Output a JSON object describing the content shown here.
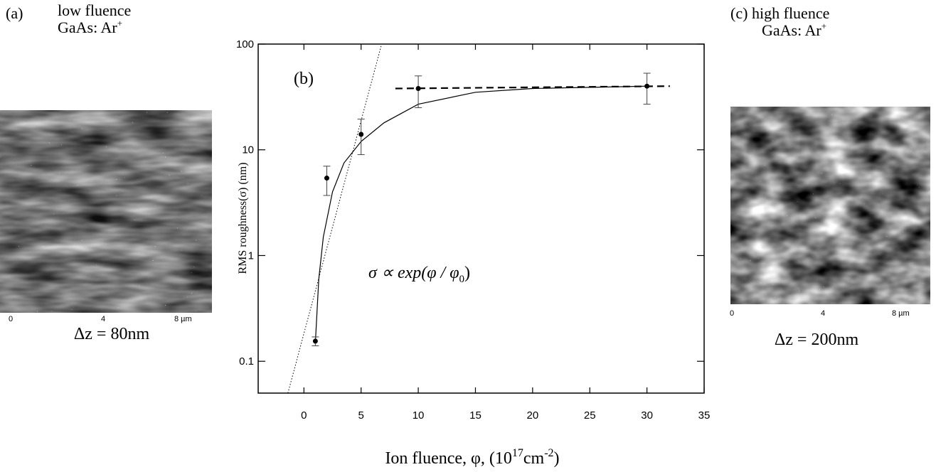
{
  "panels": {
    "a": {
      "tag": "(a)",
      "title": "low fluence",
      "material": "GaAs: Ar",
      "ion_charge": "+",
      "scale": [
        "0",
        "4",
        "8 µm"
      ],
      "dz": "Δz = 80nm"
    },
    "c": {
      "tag": "(c)",
      "title": "high fluence",
      "material": "GaAs: Ar",
      "ion_charge": "+",
      "scale": [
        "0",
        "4",
        "8 µm"
      ],
      "dz": "Δz = 200nm"
    }
  },
  "chart_data": {
    "type": "scatter",
    "panel_tag": "(b)",
    "y_label": "RMS roughness(σ) (nm)",
    "x_label": [
      "Ion fluence, φ, (10",
      "17",
      "cm",
      "-2",
      ")"
    ],
    "formula": [
      "σ ∝ exp(φ / φ",
      "0",
      ")"
    ],
    "x": [
      1,
      2,
      5,
      10,
      30
    ],
    "values": [
      0.155,
      5.4,
      14,
      38,
      40
    ],
    "lower": [
      0.14,
      3.7,
      9,
      25,
      27
    ],
    "upper": [
      0.17,
      7.0,
      19.5,
      50,
      53
    ],
    "color": "#000000",
    "xlim": [
      -4,
      35
    ],
    "xticks": [
      0,
      5,
      10,
      15,
      20,
      25,
      30,
      35
    ],
    "ylim": [
      0.05,
      100
    ],
    "yticks": [
      0.1,
      1,
      10,
      100
    ],
    "log_y": true,
    "curves": [
      {
        "style": "solid",
        "x": [
          1,
          1.3,
          1.7,
          2.5,
          3.5,
          5,
          7,
          10,
          15,
          20,
          30
        ],
        "y": [
          0.15,
          0.6,
          1.5,
          4,
          7.5,
          12,
          18,
          27,
          35,
          38,
          40
        ]
      },
      {
        "style": "dotted",
        "x": [
          -1.4,
          6.8
        ],
        "y": [
          0.05,
          100
        ]
      },
      {
        "style": "dashed",
        "x": [
          8,
          32
        ],
        "y": [
          38,
          40
        ]
      }
    ]
  }
}
